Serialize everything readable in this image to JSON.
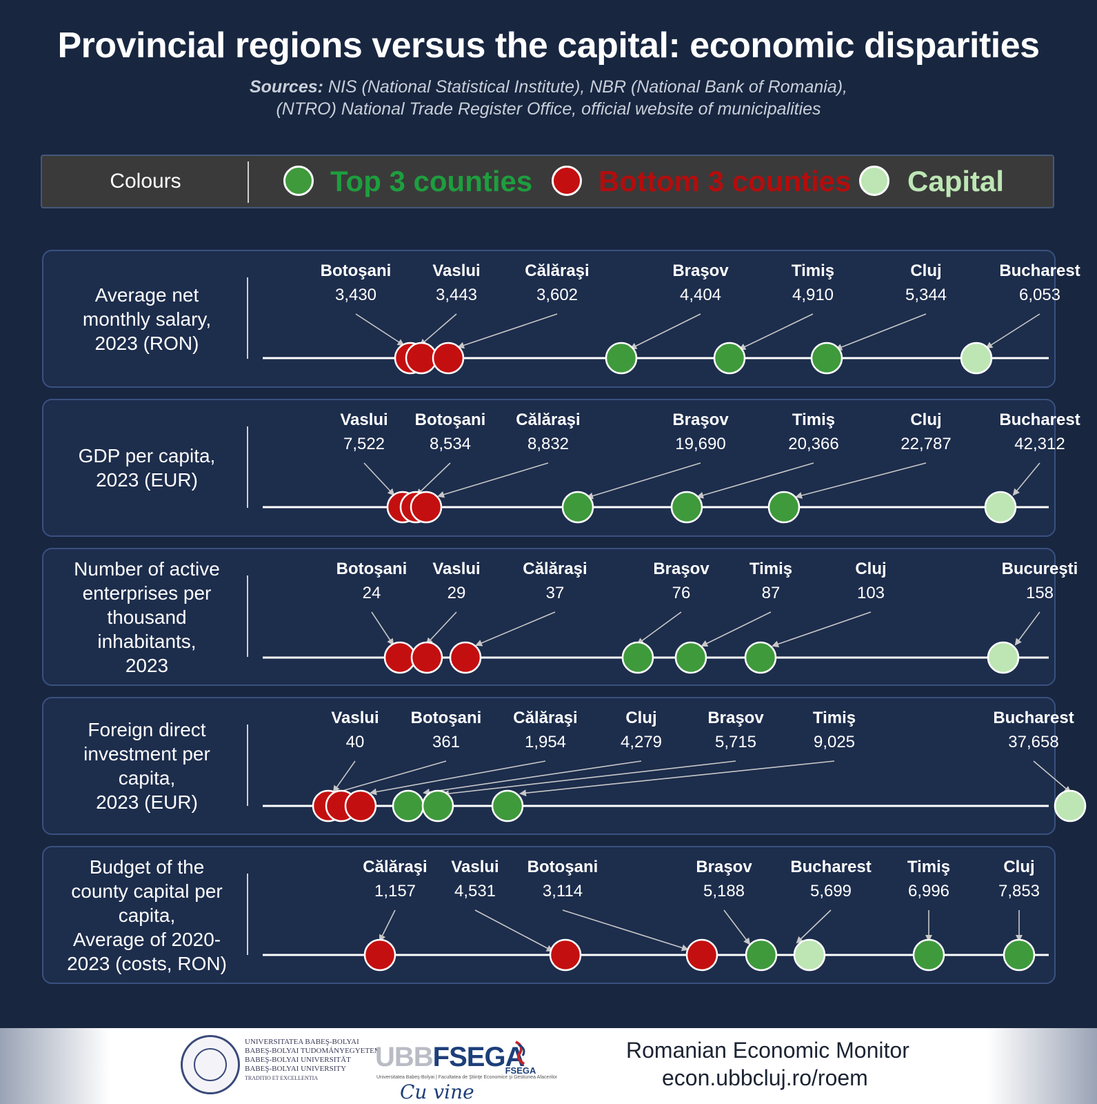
{
  "header": {
    "title": "Provincial regions versus the capital: economic disparities",
    "sources_label": "Sources:",
    "sources_line1": "NIS (National Statistical Institute), NBR (National Bank of Romania),",
    "sources_line2": "(NTRO) National Trade Register Office, official website of municipalities"
  },
  "legend": {
    "title": "Colours",
    "items": [
      {
        "label": "Top 3 counties",
        "color": "#3f9a3c",
        "text_color": "#1e9e3e"
      },
      {
        "label": "Bottom 3 counties",
        "color": "#c40f10",
        "text_color": "#b30d0d"
      },
      {
        "label": "Capital",
        "color": "#bde6b4",
        "text_color": "#bde6b4"
      }
    ]
  },
  "colors": {
    "top": "#3f9a3c",
    "bottom": "#c40f10",
    "capital": "#bde6b4"
  },
  "chart_data": [
    {
      "type": "scatter",
      "title": [
        "Average net",
        "monthly salary,",
        "2023 (RON)"
      ],
      "points": [
        {
          "name": "Botoşani",
          "value": 3430,
          "label": "3,430",
          "group": "bottom"
        },
        {
          "name": "Vaslui",
          "value": 3443,
          "label": "3,443",
          "group": "bottom"
        },
        {
          "name": "Călăraşi",
          "value": 3602,
          "label": "3,602",
          "group": "bottom"
        },
        {
          "name": "Braşov",
          "value": 4404,
          "label": "4,404",
          "group": "top"
        },
        {
          "name": "Timiş",
          "value": 4910,
          "label": "4,910",
          "group": "top"
        },
        {
          "name": "Cluj",
          "value": 5344,
          "label": "5,344",
          "group": "top"
        },
        {
          "name": "Bucharest",
          "value": 6053,
          "label": "6,053",
          "group": "capital"
        }
      ]
    },
    {
      "type": "scatter",
      "title": [
        "GDP per capita,",
        "2023 (EUR)"
      ],
      "points": [
        {
          "name": "Vaslui",
          "value": 7522,
          "label": "7,522",
          "group": "bottom"
        },
        {
          "name": "Botoşani",
          "value": 8534,
          "label": "8,534",
          "group": "bottom"
        },
        {
          "name": "Călăraşi",
          "value": 8832,
          "label": "8,832",
          "group": "bottom"
        },
        {
          "name": "Braşov",
          "value": 19690,
          "label": "19,690",
          "group": "top"
        },
        {
          "name": "Timiş",
          "value": 20366,
          "label": "20,366",
          "group": "top"
        },
        {
          "name": "Cluj",
          "value": 22787,
          "label": "22,787",
          "group": "top"
        },
        {
          "name": "Bucharest",
          "value": 42312,
          "label": "42,312",
          "group": "capital"
        }
      ]
    },
    {
      "type": "scatter",
      "title": [
        "Number of active",
        "enterprises per",
        "thousand",
        "inhabitants,",
        "2023"
      ],
      "points": [
        {
          "name": "Botoşani",
          "value": 24,
          "label": "24",
          "group": "bottom"
        },
        {
          "name": "Vaslui",
          "value": 29,
          "label": "29",
          "group": "bottom"
        },
        {
          "name": "Călăraşi",
          "value": 37,
          "label": "37",
          "group": "bottom"
        },
        {
          "name": "Braşov",
          "value": 76,
          "label": "76",
          "group": "top"
        },
        {
          "name": "Timiş",
          "value": 87,
          "label": "87",
          "group": "top"
        },
        {
          "name": "Cluj",
          "value": 103,
          "label": "103",
          "group": "top"
        },
        {
          "name": "Bucureşti",
          "value": 158,
          "label": "158",
          "group": "capital"
        }
      ]
    },
    {
      "type": "scatter",
      "title": [
        "Foreign direct",
        "investment per",
        "capita,",
        "2023 (EUR)"
      ],
      "points": [
        {
          "name": "Vaslui",
          "value": 40,
          "label": "40",
          "group": "bottom"
        },
        {
          "name": "Botoşani",
          "value": 361,
          "label": "361",
          "group": "bottom"
        },
        {
          "name": "Călăraşi",
          "value": 1954,
          "label": "1,954",
          "group": "bottom"
        },
        {
          "name": "Cluj",
          "value": 4279,
          "label": "4,279",
          "group": "top"
        },
        {
          "name": "Braşov",
          "value": 5715,
          "label": "5,715",
          "group": "top"
        },
        {
          "name": "Timiş",
          "value": 9025,
          "label": "9,025",
          "group": "top"
        },
        {
          "name": "Bucharest",
          "value": 37658,
          "label": "37,658",
          "group": "capital"
        }
      ]
    },
    {
      "type": "scatter",
      "title": [
        "Budget of the",
        "county capital per",
        "capita,",
        "Average of 2020-",
        "2023 (costs, RON)"
      ],
      "points": [
        {
          "name": "Călăraşi",
          "value": 1157,
          "label": "1,157",
          "group": "bottom"
        },
        {
          "name": "Vaslui",
          "value": 4531,
          "label": "4,531",
          "group": "bottom"
        },
        {
          "name": "Botoşani",
          "value": 3114,
          "label": "3,114",
          "group": "bottom"
        },
        {
          "name": "Braşov",
          "value": 5188,
          "label": "5,188",
          "group": "top"
        },
        {
          "name": "Bucharest",
          "value": 5699,
          "label": "5,699",
          "group": "capital"
        },
        {
          "name": "Timiş",
          "value": 6996,
          "label": "6,996",
          "group": "top"
        },
        {
          "name": "Cluj",
          "value": 7853,
          "label": "7,853",
          "group": "top"
        }
      ]
    }
  ],
  "footer": {
    "university_lines": [
      "UNIVERSITATEA BABEŞ-BOLYAI",
      "BABEŞ-BOLYAI TUDOMÁNYEGYETEM",
      "BABEŞ-BOLYAI UNIVERSITÄT",
      "BABEŞ-BOLYAI UNIVERSITY",
      "TRADITIO ET EXCELLENTIA"
    ],
    "ubb": "UBB",
    "fsega": "FSEGA",
    "fsega_sub": "Universitatea Babeş-Bolyai | Facultatea de Ştiinţe Economice şi Gestiunea Afacerilor",
    "fsega_badge": "FSEGA",
    "fsega_script": "Cu vine",
    "monitor_title": "Romanian Economic Monitor",
    "monitor_url": "econ.ubbcluj.ro/roem"
  }
}
